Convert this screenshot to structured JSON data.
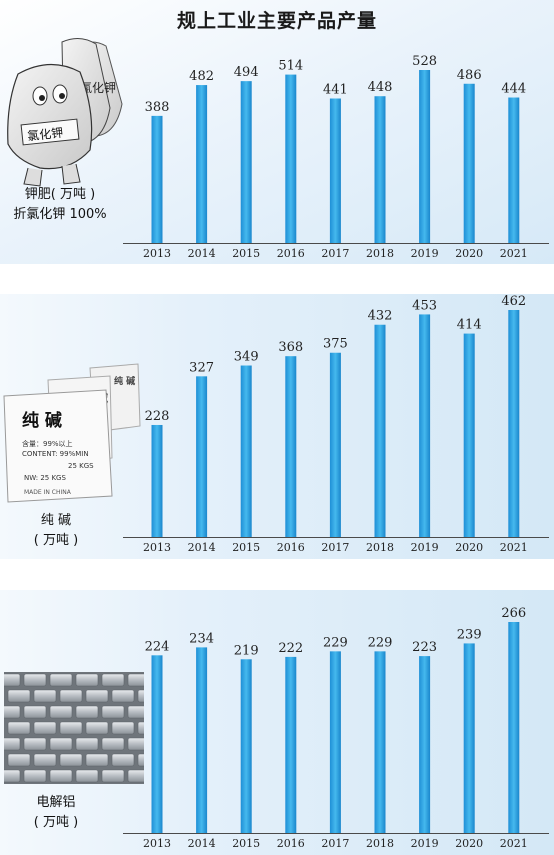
{
  "title": "规上工业主要产品产量",
  "panels": [
    {
      "label_lines": [
        "钾肥( 万吨 )",
        "折氯化钾 100%"
      ],
      "bag_text": "氯化钾",
      "chart_data": {
        "type": "bar",
        "categories": [
          "2013",
          "2014",
          "2015",
          "2016",
          "2017",
          "2018",
          "2019",
          "2020",
          "2021"
        ],
        "values": [
          388,
          482,
          494,
          514,
          441,
          448,
          528,
          486,
          444
        ],
        "title": "",
        "xlabel": "",
        "ylabel": "",
        "ylim": [
          0,
          560
        ]
      }
    },
    {
      "label_lines": [
        "纯  碱",
        "( 万吨 )"
      ],
      "bag_text": "纯 碱",
      "bag_small_lines": [
        "含量：99%以上",
        "CONTENT: 99%MIN",
        "25 KGS",
        "NW: 25 KGS",
        "MADE IN CHINA"
      ],
      "chart_data": {
        "type": "bar",
        "categories": [
          "2013",
          "2014",
          "2015",
          "2016",
          "2017",
          "2018",
          "2019",
          "2020",
          "2021"
        ],
        "values": [
          228,
          327,
          349,
          368,
          375,
          432,
          453,
          414,
          462
        ],
        "title": "",
        "xlabel": "",
        "ylabel": "",
        "ylim": [
          0,
          480
        ]
      }
    },
    {
      "label_lines": [
        "电解铝",
        "( 万吨 )"
      ],
      "chart_data": {
        "type": "bar",
        "categories": [
          "2013",
          "2014",
          "2015",
          "2016",
          "2017",
          "2018",
          "2019",
          "2020",
          "2021"
        ],
        "values": [
          224,
          234,
          219,
          222,
          229,
          229,
          223,
          239,
          266
        ],
        "title": "",
        "xlabel": "",
        "ylabel": "",
        "ylim": [
          0,
          280
        ]
      }
    }
  ],
  "colors": {
    "bar_top": "#38b4e8",
    "bar_bottom": "#1580c8"
  }
}
